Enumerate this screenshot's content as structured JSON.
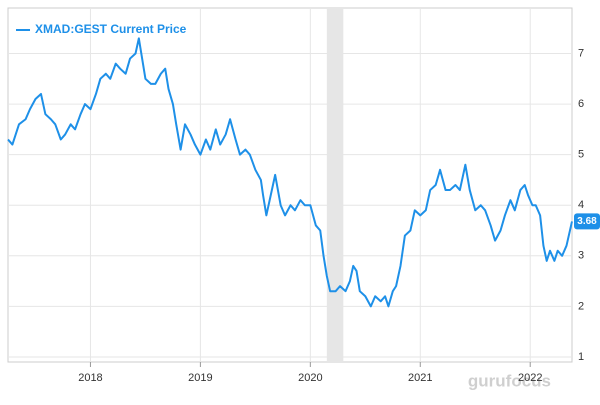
{
  "chart_data": {
    "type": "line",
    "x": [
      2017.25,
      2017.29,
      2017.35,
      2017.41,
      2017.45,
      2017.5,
      2017.55,
      2017.59,
      2017.64,
      2017.68,
      2017.73,
      2017.77,
      2017.82,
      2017.86,
      2017.91,
      2017.95,
      2018,
      2018.05,
      2018.09,
      2018.14,
      2018.18,
      2018.23,
      2018.27,
      2018.32,
      2018.36,
      2018.41,
      2018.44,
      2018.47,
      2018.5,
      2018.55,
      2018.59,
      2018.64,
      2018.68,
      2018.71,
      2018.75,
      2018.78,
      2018.82,
      2018.86,
      2018.91,
      2018.95,
      2019,
      2019.05,
      2019.09,
      2019.14,
      2019.18,
      2019.23,
      2019.27,
      2019.32,
      2019.36,
      2019.41,
      2019.45,
      2019.5,
      2019.55,
      2019.57,
      2019.6,
      2019.64,
      2019.68,
      2019.73,
      2019.77,
      2019.82,
      2019.86,
      2019.91,
      2019.95,
      2020,
      2020.05,
      2020.09,
      2020.12,
      2020.15,
      2020.18,
      2020.23,
      2020.27,
      2020.32,
      2020.36,
      2020.39,
      2020.42,
      2020.45,
      2020.5,
      2020.55,
      2020.59,
      2020.64,
      2020.68,
      2020.71,
      2020.75,
      2020.78,
      2020.82,
      2020.86,
      2020.91,
      2020.95,
      2021,
      2021.05,
      2021.09,
      2021.14,
      2021.18,
      2021.23,
      2021.27,
      2021.32,
      2021.36,
      2021.41,
      2021.45,
      2021.5,
      2021.55,
      2021.59,
      2021.64,
      2021.68,
      2021.73,
      2021.77,
      2021.82,
      2021.86,
      2021.91,
      2021.95,
      2021.98,
      2022.02,
      2022.05,
      2022.09,
      2022.12,
      2022.15,
      2022.18,
      2022.22,
      2022.25,
      2022.29,
      2022.33,
      2022.38
    ],
    "series": [
      {
        "name": "XMAD:GEST Current Price",
        "color": "#1e90e8",
        "values": [
          5.3,
          5.2,
          5.6,
          5.7,
          5.9,
          6.1,
          6.2,
          5.8,
          5.7,
          5.6,
          5.3,
          5.4,
          5.6,
          5.5,
          5.8,
          6.0,
          5.9,
          6.2,
          6.5,
          6.6,
          6.5,
          6.8,
          6.7,
          6.6,
          6.9,
          7.0,
          7.3,
          6.9,
          6.5,
          6.4,
          6.4,
          6.6,
          6.7,
          6.3,
          6.0,
          5.6,
          5.1,
          5.6,
          5.4,
          5.2,
          5.0,
          5.3,
          5.1,
          5.5,
          5.2,
          5.4,
          5.7,
          5.3,
          5.0,
          5.1,
          5.0,
          4.7,
          4.5,
          4.2,
          3.8,
          4.2,
          4.6,
          4.0,
          3.8,
          4.0,
          3.9,
          4.1,
          4.0,
          4.0,
          3.6,
          3.5,
          3.0,
          2.6,
          2.3,
          2.3,
          2.4,
          2.3,
          2.5,
          2.8,
          2.7,
          2.3,
          2.2,
          2.0,
          2.2,
          2.1,
          2.2,
          2.0,
          2.3,
          2.4,
          2.8,
          3.4,
          3.5,
          3.9,
          3.8,
          3.9,
          4.3,
          4.4,
          4.7,
          4.3,
          4.3,
          4.4,
          4.3,
          4.8,
          4.3,
          3.9,
          4.0,
          3.9,
          3.6,
          3.3,
          3.5,
          3.8,
          4.1,
          3.9,
          4.3,
          4.4,
          4.2,
          4.0,
          4.0,
          3.8,
          3.2,
          2.9,
          3.1,
          2.9,
          3.1,
          3.0,
          3.2,
          3.68
        ]
      }
    ],
    "xlim": [
      2017.25,
      2022.38
    ],
    "xticks": [
      2018,
      2019,
      2020,
      2021,
      2022
    ],
    "ylim": [
      0.9,
      7.9
    ],
    "yticks": [
      1,
      2,
      3,
      4,
      5,
      6,
      7
    ],
    "shaded_range": [
      2020.15,
      2020.3
    ],
    "grid": true,
    "watermark": "gurufocus"
  }
}
